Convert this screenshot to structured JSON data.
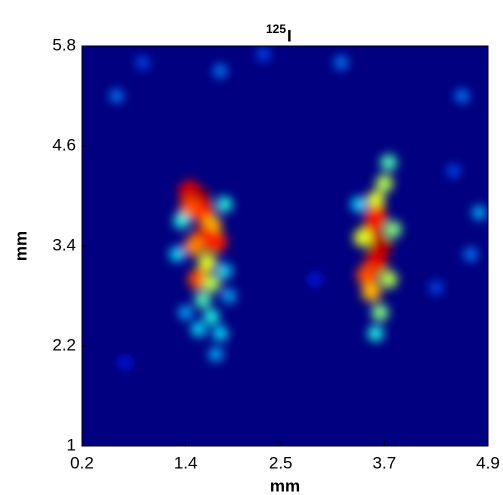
{
  "chart_data": {
    "type": "heatmap",
    "title": {
      "superscript": "125",
      "text": "I"
    },
    "x_label": "mm",
    "y_label": "mm",
    "xlim": [
      0.2,
      4.9
    ],
    "ylim": [
      1,
      5.8
    ],
    "xticks": [
      0.2,
      1.4,
      2.5,
      3.7,
      4.9
    ],
    "yticks": [
      1,
      2.2,
      3.4,
      4.6,
      5.8
    ],
    "colormap": "jet",
    "clim": [
      0,
      1
    ],
    "x": [
      1.45,
      1.55,
      1.6,
      1.45,
      1.7,
      1.6,
      1.75,
      1.5,
      1.65,
      1.55,
      1.7,
      1.6,
      1.7,
      1.55,
      1.8,
      1.75,
      1.35,
      1.85,
      1.85,
      1.9,
      1.3,
      1.4,
      3.75,
      3.7,
      3.6,
      3.6,
      3.55,
      3.65,
      3.6,
      3.5,
      3.55,
      3.65,
      3.6,
      3.45,
      3.75,
      3.8,
      3.4,
      0.6,
      0.9,
      1.8,
      2.3,
      3.2,
      4.6,
      4.8,
      4.7,
      4.3,
      0.7,
      2.9,
      4.5
    ],
    "y": [
      4.05,
      3.95,
      3.8,
      3.85,
      3.65,
      3.5,
      3.45,
      3.4,
      3.2,
      3.0,
      2.95,
      2.75,
      2.55,
      2.4,
      2.35,
      2.1,
      3.7,
      3.9,
      3.1,
      2.8,
      3.3,
      2.6,
      4.4,
      4.15,
      3.95,
      3.75,
      3.55,
      3.4,
      3.2,
      3.05,
      2.85,
      2.6,
      2.35,
      3.5,
      3.0,
      3.6,
      3.9,
      5.2,
      5.6,
      5.5,
      5.7,
      5.6,
      5.2,
      3.8,
      3.3,
      2.9,
      2.0,
      3.0,
      4.3
    ],
    "values": [
      0.9,
      0.95,
      0.85,
      0.8,
      0.7,
      0.9,
      0.85,
      0.75,
      0.6,
      0.8,
      0.55,
      0.45,
      0.4,
      0.35,
      0.35,
      0.3,
      0.4,
      0.4,
      0.35,
      0.3,
      0.35,
      0.3,
      0.45,
      0.55,
      0.6,
      0.85,
      0.9,
      0.95,
      0.9,
      0.8,
      0.7,
      0.5,
      0.4,
      0.6,
      0.55,
      0.5,
      0.35,
      0.25,
      0.2,
      0.25,
      0.2,
      0.25,
      0.25,
      0.3,
      0.25,
      0.2,
      0.15,
      0.15,
      0.2
    ]
  }
}
